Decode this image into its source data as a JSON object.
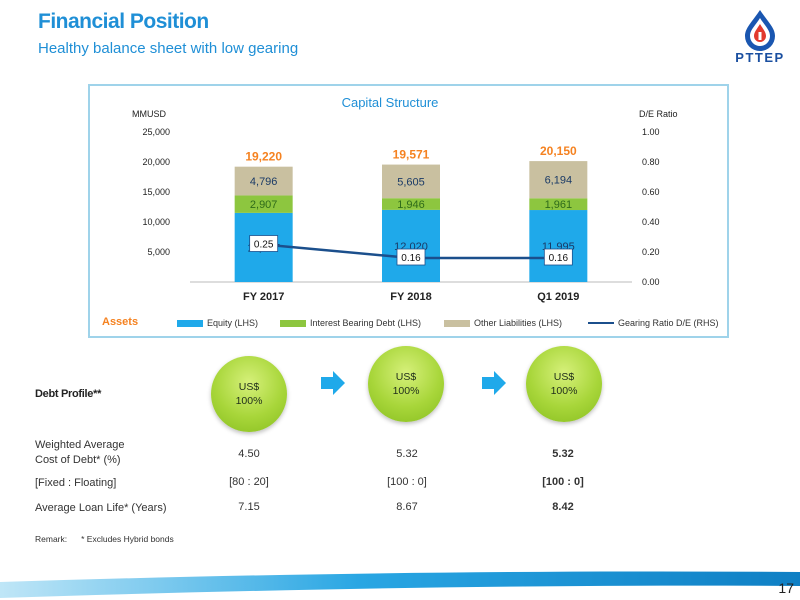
{
  "header": {
    "title": "Financial Position",
    "subtitle": "Healthy balance sheet with low gearing"
  },
  "logo": {
    "text": "PTTEP"
  },
  "chart_data": {
    "type": "bar",
    "stacked": true,
    "title": "Capital Structure",
    "categories": [
      "FY 2017",
      "FY 2018",
      "Q1 2019"
    ],
    "y_left_label": "MMUSD",
    "y_right_label": "D/E Ratio",
    "y_left_lim": [
      0,
      25000
    ],
    "y_right_lim": [
      0,
      1.0
    ],
    "y_left_ticks": [
      "25,000",
      "20,000",
      "15,000",
      "10,000",
      "5,000"
    ],
    "y_right_ticks": [
      "1.00",
      "0.80",
      "0.60",
      "0.40",
      "0.20",
      "0.00"
    ],
    "grid": false,
    "series": [
      {
        "name": "Equity (LHS)",
        "color": "#1fa9ea",
        "values": [
          11517,
          12020,
          11995
        ],
        "labels": [
          "11,517",
          "12,020",
          "11,995"
        ]
      },
      {
        "name": "Interest Bearing Debt (LHS)",
        "color": "#8dc63f",
        "values": [
          2907,
          1946,
          1961
        ],
        "labels": [
          "2,907",
          "1,946",
          "1,961"
        ]
      },
      {
        "name": "Other Liabilities (LHS)",
        "color": "#c9c0a0",
        "values": [
          4796,
          5605,
          6194
        ],
        "labels": [
          "4,796",
          "5,605",
          "6,194"
        ]
      }
    ],
    "totals": [
      "19,220",
      "19,571",
      "20,150"
    ],
    "line_series": {
      "name": "Gearing Ratio D/E (RHS)",
      "color": "#1b4f8c",
      "values": [
        0.25,
        0.16,
        0.16
      ],
      "labels": [
        "0.25",
        "0.16",
        "0.16"
      ]
    },
    "legend_prefix": "Assets",
    "legend_position": "bottom"
  },
  "colors": {
    "accent": "#1f8fd6",
    "assets": "#f58220",
    "circle": "#a8d63a",
    "arrow": "#1fa9ea"
  },
  "debt_profile": {
    "label": "Debt Profile**",
    "currency": [
      {
        "line1": "US$",
        "line2": "100%"
      },
      {
        "line1": "US$",
        "line2": "100%"
      },
      {
        "line1": "US$",
        "line2": "100%"
      }
    ],
    "rows": [
      {
        "label_line1": "Weighted Average",
        "label_line2": "Cost of Debt* (%)",
        "values": [
          "4.50",
          "5.32",
          "5.32"
        ]
      },
      {
        "label_line1": "[Fixed : Floating]",
        "label_line2": "",
        "values": [
          "[80 : 20]",
          "[100 : 0]",
          "[100 : 0]"
        ]
      },
      {
        "label_line1": "Average Loan Life* (Years)",
        "label_line2": "",
        "values": [
          "7.15",
          "8.67",
          "8.42"
        ]
      }
    ]
  },
  "remark": {
    "label": "Remark:",
    "text": "*    Excludes Hybrid bonds"
  },
  "page_number": "17"
}
